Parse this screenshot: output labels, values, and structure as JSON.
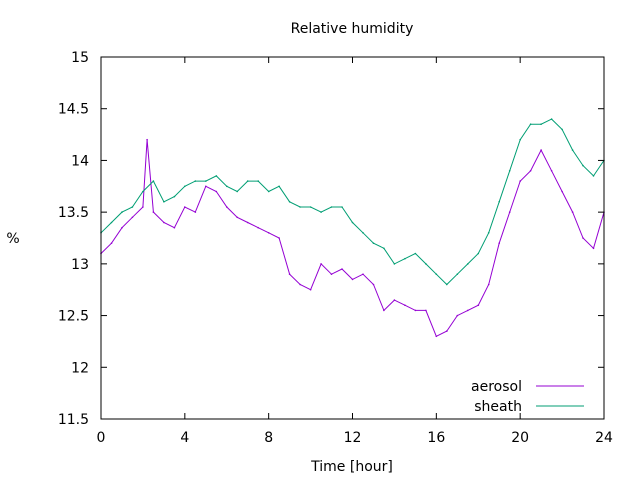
{
  "chart_data": {
    "type": "line",
    "title": "Relative humidity",
    "xlabel": "Time [hour]",
    "ylabel": "%",
    "xlim": [
      0,
      24
    ],
    "ylim": [
      11.5,
      15
    ],
    "x_ticks": [
      "0",
      "4",
      "8",
      "12",
      "16",
      "20",
      "24"
    ],
    "y_ticks": [
      "11.5",
      "12",
      "12.5",
      "13",
      "13.5",
      "14",
      "14.5",
      "15"
    ],
    "grid": false,
    "legend_position": "bottom-right",
    "series": [
      {
        "name": "aerosol",
        "color": "#9400d3",
        "x": [
          0,
          0.5,
          1,
          1.5,
          2,
          2.2,
          2.5,
          3,
          3.5,
          4,
          4.5,
          5,
          5.5,
          6,
          6.5,
          7,
          7.5,
          8,
          8.5,
          9,
          9.5,
          10,
          10.5,
          11,
          11.5,
          12,
          12.5,
          13,
          13.5,
          14,
          14.5,
          15,
          15.5,
          16,
          16.5,
          17,
          17.5,
          18,
          18.5,
          19,
          19.5,
          20,
          20.5,
          21,
          21.5,
          22,
          22.5,
          23,
          23.5,
          24
        ],
        "y": [
          13.1,
          13.2,
          13.35,
          13.45,
          13.55,
          14.2,
          13.5,
          13.4,
          13.35,
          13.55,
          13.5,
          13.75,
          13.7,
          13.55,
          13.45,
          13.4,
          13.35,
          13.3,
          13.25,
          12.9,
          12.8,
          12.75,
          13.0,
          12.9,
          12.95,
          12.85,
          12.9,
          12.8,
          12.55,
          12.65,
          12.6,
          12.55,
          12.55,
          12.3,
          12.35,
          12.5,
          12.55,
          12.6,
          12.8,
          13.2,
          13.5,
          13.8,
          13.9,
          14.1,
          13.9,
          13.7,
          13.5,
          13.25,
          13.15,
          13.5
        ]
      },
      {
        "name": "sheath",
        "color": "#009e73",
        "x": [
          0,
          0.5,
          1,
          1.5,
          2,
          2.5,
          3,
          3.5,
          4,
          4.5,
          5,
          5.5,
          6,
          6.5,
          7,
          7.5,
          8,
          8.5,
          9,
          9.5,
          10,
          10.5,
          11,
          11.5,
          12,
          12.5,
          13,
          13.5,
          14,
          14.5,
          15,
          15.5,
          16,
          16.5,
          17,
          17.5,
          18,
          18.5,
          19,
          19.5,
          20,
          20.5,
          21,
          21.5,
          22,
          22.5,
          23,
          23.5,
          24
        ],
        "y": [
          13.3,
          13.4,
          13.5,
          13.55,
          13.7,
          13.8,
          13.6,
          13.65,
          13.75,
          13.8,
          13.8,
          13.85,
          13.75,
          13.7,
          13.8,
          13.8,
          13.7,
          13.75,
          13.6,
          13.55,
          13.55,
          13.5,
          13.55,
          13.55,
          13.4,
          13.3,
          13.2,
          13.15,
          13.0,
          13.05,
          13.1,
          13.0,
          12.9,
          12.8,
          12.9,
          13.0,
          13.1,
          13.3,
          13.6,
          13.9,
          14.2,
          14.35,
          14.35,
          14.4,
          14.3,
          14.1,
          13.95,
          13.85,
          14.0
        ]
      }
    ]
  }
}
